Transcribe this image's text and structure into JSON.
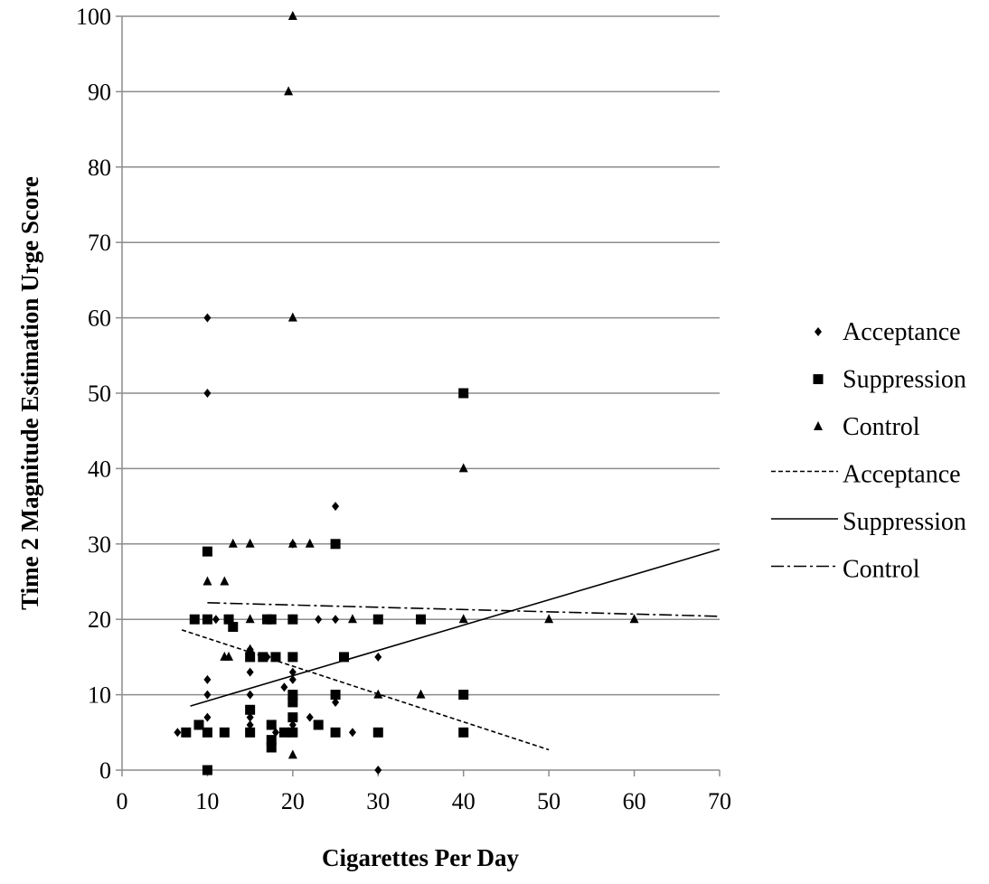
{
  "chart_data": {
    "type": "scatter",
    "title": "",
    "xlabel": "Cigarettes Per Day",
    "ylabel": "Time 2 Magnitude Estimation  Urge Score",
    "xlim": [
      0,
      70
    ],
    "ylim": [
      0,
      100
    ],
    "x_ticks": [
      0,
      10,
      20,
      30,
      40,
      50,
      60,
      70
    ],
    "y_ticks": [
      0,
      10,
      20,
      30,
      40,
      50,
      60,
      70,
      80,
      90,
      100
    ],
    "grid": "horizontal",
    "legend_position": "right",
    "series": [
      {
        "name": "Acceptance",
        "marker": "diamond",
        "points": [
          [
            6.5,
            5
          ],
          [
            10,
            60
          ],
          [
            10,
            50
          ],
          [
            10,
            12
          ],
          [
            10,
            10
          ],
          [
            10,
            7
          ],
          [
            11,
            20
          ],
          [
            12,
            5
          ],
          [
            15,
            16
          ],
          [
            15,
            13
          ],
          [
            15,
            10
          ],
          [
            15,
            7
          ],
          [
            15,
            6
          ],
          [
            17,
            15
          ],
          [
            18,
            15
          ],
          [
            18,
            5
          ],
          [
            19,
            11
          ],
          [
            20,
            30
          ],
          [
            20,
            20
          ],
          [
            20,
            13
          ],
          [
            20,
            12
          ],
          [
            20,
            6
          ],
          [
            22,
            7
          ],
          [
            23,
            20
          ],
          [
            25,
            35
          ],
          [
            25,
            20
          ],
          [
            25,
            10
          ],
          [
            25,
            9
          ],
          [
            27,
            5
          ],
          [
            30,
            15
          ],
          [
            30,
            0
          ]
        ]
      },
      {
        "name": "Suppression",
        "marker": "square",
        "points": [
          [
            7.5,
            5
          ],
          [
            8.5,
            20
          ],
          [
            9,
            6
          ],
          [
            10,
            29
          ],
          [
            10,
            20
          ],
          [
            10,
            5
          ],
          [
            10,
            0
          ],
          [
            12,
            5
          ],
          [
            12.5,
            20
          ],
          [
            13,
            19
          ],
          [
            15,
            15
          ],
          [
            15,
            8
          ],
          [
            15,
            5
          ],
          [
            16.5,
            15
          ],
          [
            17,
            20
          ],
          [
            17.5,
            20
          ],
          [
            17.5,
            6
          ],
          [
            17.5,
            4
          ],
          [
            17.5,
            3
          ],
          [
            18,
            15
          ],
          [
            19,
            5
          ],
          [
            20,
            20
          ],
          [
            20,
            15
          ],
          [
            20,
            10
          ],
          [
            20,
            9
          ],
          [
            20,
            7
          ],
          [
            20,
            5
          ],
          [
            23,
            6
          ],
          [
            25,
            30
          ],
          [
            25,
            10
          ],
          [
            25,
            5
          ],
          [
            26,
            15
          ],
          [
            30,
            20
          ],
          [
            30,
            5
          ],
          [
            35,
            20
          ],
          [
            40,
            50
          ],
          [
            40,
            10
          ],
          [
            40,
            5
          ]
        ]
      },
      {
        "name": "Control",
        "marker": "triangle",
        "points": [
          [
            10,
            25
          ],
          [
            12,
            25
          ],
          [
            12,
            15
          ],
          [
            12.5,
            15
          ],
          [
            13,
            30
          ],
          [
            15,
            30
          ],
          [
            15,
            20
          ],
          [
            15,
            16
          ],
          [
            19.5,
            90
          ],
          [
            20,
            100
          ],
          [
            20,
            60
          ],
          [
            20,
            30
          ],
          [
            20,
            20
          ],
          [
            20,
            2
          ],
          [
            22,
            30
          ],
          [
            27,
            20
          ],
          [
            30,
            10
          ],
          [
            35,
            10
          ],
          [
            40,
            40
          ],
          [
            40,
            20
          ],
          [
            50,
            20
          ],
          [
            60,
            20
          ]
        ]
      }
    ],
    "trendlines": [
      {
        "name": "Acceptance",
        "style": "dashed",
        "x": [
          7,
          50
        ],
        "y": [
          18.6,
          2.7
        ]
      },
      {
        "name": "Suppression",
        "style": "solid",
        "x": [
          8,
          70
        ],
        "y": [
          8.5,
          29.3
        ]
      },
      {
        "name": "Control",
        "style": "dashdot",
        "x": [
          10,
          70
        ],
        "y": [
          22.2,
          20.4
        ]
      }
    ],
    "legend": [
      {
        "label": "Acceptance",
        "symbol": "diamond"
      },
      {
        "label": "Suppression",
        "symbol": "square"
      },
      {
        "label": "Control",
        "symbol": "triangle"
      },
      {
        "label": "Acceptance",
        "symbol": "dashed"
      },
      {
        "label": "Suppression",
        "symbol": "solid"
      },
      {
        "label": "Control",
        "symbol": "dashdot"
      }
    ],
    "colors": {
      "marker": "#000000",
      "grid": "#8c8c8c"
    }
  }
}
